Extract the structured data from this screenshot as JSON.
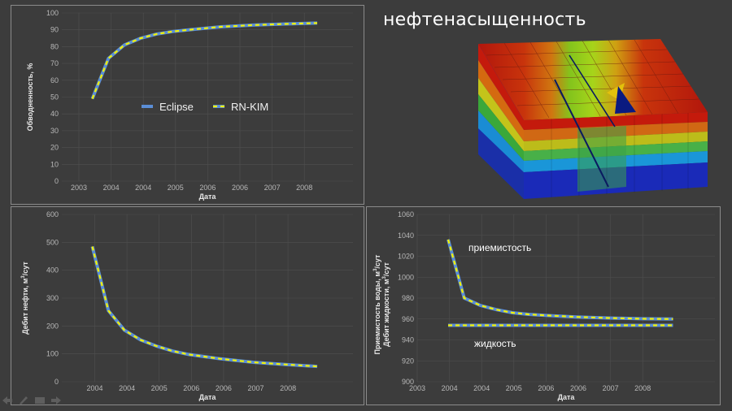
{
  "model": {
    "title": "нефтенасыщенность",
    "icon": "reservoir-3d-model"
  },
  "controls": [
    {
      "name": "prev-slide-icon"
    },
    {
      "name": "pen-icon"
    },
    {
      "name": "slides-icon"
    },
    {
      "name": "next-slide-icon"
    }
  ],
  "colors": {
    "eclipse": "#5b8ed6",
    "rnkim": "#f2f200",
    "background": "#3c3c3c",
    "grid": "#4f4f4f"
  },
  "chart_data": [
    {
      "type": "line",
      "xlabel": "Дата",
      "ylabel": "Обводненность, %",
      "x_ticks": [
        "2003",
        "2004",
        "2004",
        "2005",
        "2006",
        "2006",
        "2007",
        "2008"
      ],
      "ylim": [
        0,
        100
      ],
      "y_ticks": [
        "0",
        "10",
        "20",
        "30",
        "40",
        "50",
        "60",
        "70",
        "80",
        "90",
        "100"
      ],
      "legend": [
        "Eclipse",
        "RN-KIM"
      ],
      "legend_position": "center-left",
      "x": [
        2004.0,
        2004.25,
        2004.5,
        2004.75,
        2005.0,
        2005.25,
        2005.5,
        2006.0,
        2006.5,
        2007.0,
        2007.5
      ],
      "series": [
        {
          "name": "Eclipse",
          "values": [
            49,
            73,
            81,
            85,
            87.5,
            89,
            90,
            91.8,
            92.8,
            93.5,
            94
          ]
        },
        {
          "name": "RN-KIM",
          "values": [
            49,
            73,
            81,
            85,
            87.5,
            89,
            90,
            91.8,
            92.8,
            93.5,
            94
          ]
        }
      ]
    },
    {
      "type": "line",
      "xlabel": "Дата",
      "ylabel": "Дебит нефти, м",
      "ylabel_sup": "3",
      "ylabel_tail": "/сут",
      "x_ticks": [
        "2004",
        "2004",
        "2005",
        "2006",
        "2006",
        "2007",
        "2008"
      ],
      "ylim": [
        0,
        600
      ],
      "y_ticks": [
        "0",
        "100",
        "200",
        "300",
        "400",
        "500",
        "600"
      ],
      "x": [
        2004.0,
        2004.25,
        2004.5,
        2004.75,
        2005.0,
        2005.25,
        2005.5,
        2006.0,
        2006.5,
        2007.0,
        2007.5
      ],
      "series": [
        {
          "name": "Eclipse",
          "values": [
            485,
            255,
            185,
            150,
            128,
            110,
            98,
            82,
            70,
            62,
            55
          ]
        },
        {
          "name": "RN-KIM",
          "values": [
            485,
            255,
            185,
            150,
            128,
            110,
            98,
            82,
            70,
            62,
            55
          ]
        }
      ]
    },
    {
      "type": "line",
      "xlabel": "Дата",
      "ylabel": "Приемистость воды, м",
      "ylabel_sup": "3",
      "ylabel_tail": "/сут",
      "ylabel2": "Дебит жидкости, м",
      "ylabel2_sup": "3",
      "ylabel2_tail": "/сут",
      "x_ticks": [
        "2003",
        "2004",
        "2004",
        "2005",
        "2006",
        "2006",
        "2007",
        "2008"
      ],
      "ylim": [
        900,
        1060
      ],
      "y_ticks": [
        "900",
        "920",
        "940",
        "960",
        "980",
        "1000",
        "1020",
        "1040",
        "1060"
      ],
      "annotations": [
        {
          "text": "приемистость"
        },
        {
          "text": "жидкость"
        }
      ],
      "x": [
        2004.0,
        2004.25,
        2004.5,
        2004.75,
        2005.0,
        2005.25,
        2005.5,
        2006.0,
        2006.5,
        2007.0,
        2007.5
      ],
      "series": [
        {
          "name": "приемистость Eclipse",
          "values": [
            1036,
            980,
            973,
            969,
            966,
            964.5,
            963.5,
            962,
            961,
            960.3,
            960
          ]
        },
        {
          "name": "приемистость RN-KIM",
          "values": [
            1036,
            980,
            973,
            969,
            966,
            964.5,
            963.5,
            962,
            961,
            960.3,
            960
          ]
        },
        {
          "name": "жидкость Eclipse",
          "values": [
            954,
            954,
            954,
            954,
            954,
            954,
            954,
            954,
            954,
            954,
            954
          ]
        },
        {
          "name": "жидкость RN-KIM",
          "values": [
            954,
            954,
            954,
            954,
            954,
            954,
            954,
            954,
            954,
            954,
            954
          ]
        }
      ]
    }
  ]
}
